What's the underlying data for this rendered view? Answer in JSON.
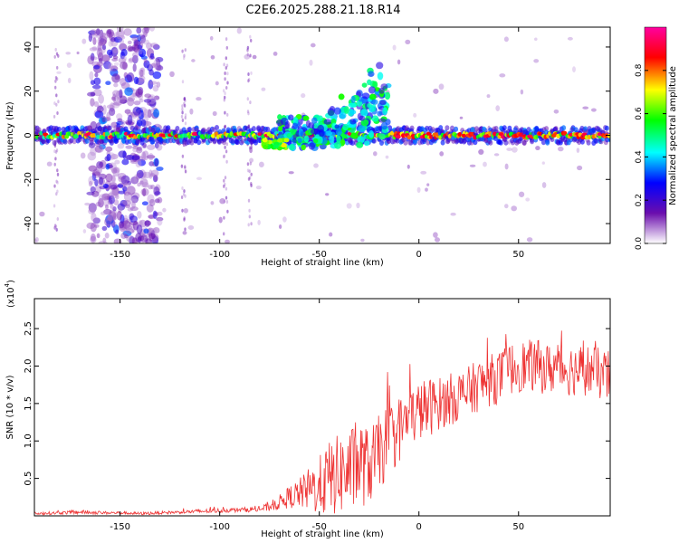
{
  "figure": {
    "title": "C2E6.2025.288.21.18.R14"
  },
  "chart_data": [
    {
      "type": "heatmap",
      "title": "C2E6.2025.288.21.18.R14",
      "xlabel": "Height of straight line (km)",
      "ylabel": "Frequency (Hz)",
      "xlim": [
        -193,
        96
      ],
      "ylim": [
        -49,
        49
      ],
      "xticks": [
        -150,
        -100,
        -50,
        0,
        50
      ],
      "yticks": [
        -40,
        -20,
        0,
        20,
        40
      ],
      "colorbar": {
        "label": "Normalized spectral amplitude",
        "range": [
          0,
          1
        ],
        "ticks": [
          0.0,
          0.2,
          0.4,
          0.6,
          0.8
        ],
        "tick_labels": [
          "0.0",
          "0.2",
          "0.4",
          "0.6",
          "0.8"
        ],
        "colors": [
          "#ffffff",
          "#6a0dad",
          "#0000ff",
          "#00ffff",
          "#00ff00",
          "#ffff00",
          "#ff0000",
          "#ff00a0"
        ]
      },
      "features": [
        {
          "name": "dominant band",
          "x_range": [
            -193,
            96
          ],
          "frequency_center": 0,
          "frequency_halfwidth": 3
        },
        {
          "name": "scattered dispersion",
          "x_range": [
            -165,
            -130
          ],
          "frequency_range": [
            -49,
            49
          ]
        },
        {
          "name": "rising streak",
          "x_range": [
            -50,
            -20
          ],
          "frequency_range": [
            0,
            35
          ]
        }
      ]
    },
    {
      "type": "line",
      "xlabel": "Height of straight line (km)",
      "ylabel": "SNR (10 * v/v)",
      "y_scale_label": "(x10",
      "y_scale_exponent": "4",
      "xlim": [
        -193,
        96
      ],
      "ylim": [
        0,
        2.9
      ],
      "xticks": [
        -150,
        -100,
        -50,
        0,
        50
      ],
      "yticks": [
        0.5,
        1.0,
        1.5,
        2.0,
        2.5
      ],
      "ytick_labels": [
        "0.5",
        "1.0",
        "1.5",
        "2.0",
        "2.5"
      ],
      "color": "#ee3333",
      "series": [
        {
          "name": "SNR",
          "x": [
            -193,
            -180,
            -170,
            -160,
            -150,
            -140,
            -130,
            -120,
            -110,
            -100,
            -90,
            -80,
            -75,
            -70,
            -65,
            -60,
            -55,
            -50,
            -45,
            -40,
            -35,
            -30,
            -25,
            -20,
            -15,
            -10,
            -5,
            0,
            5,
            10,
            15,
            20,
            25,
            30,
            35,
            40,
            45,
            50,
            55,
            60,
            65,
            70,
            75,
            80,
            85,
            90,
            96
          ],
          "y": [
            0.03,
            0.04,
            0.05,
            0.04,
            0.04,
            0.03,
            0.04,
            0.05,
            0.06,
            0.07,
            0.08,
            0.09,
            0.12,
            0.18,
            0.25,
            0.3,
            0.35,
            0.4,
            0.5,
            0.55,
            0.6,
            0.7,
            0.65,
            0.85,
            1.0,
            1.15,
            1.3,
            1.4,
            1.45,
            1.5,
            1.55,
            1.6,
            1.65,
            1.75,
            1.8,
            1.85,
            1.95,
            2.0,
            2.0,
            2.0,
            1.95,
            2.0,
            1.95,
            1.95,
            1.95,
            1.9,
            1.85
          ],
          "noise_amplitude": [
            0.02,
            0.02,
            0.03,
            0.02,
            0.02,
            0.02,
            0.02,
            0.02,
            0.03,
            0.03,
            0.03,
            0.04,
            0.06,
            0.1,
            0.15,
            0.2,
            0.3,
            0.4,
            0.5,
            0.55,
            0.55,
            0.6,
            0.5,
            0.5,
            0.5,
            0.45,
            0.4,
            0.4,
            0.4,
            0.35,
            0.35,
            0.35,
            0.35,
            0.35,
            0.35,
            0.35,
            0.35,
            0.35,
            0.35,
            0.35,
            0.35,
            0.35,
            0.35,
            0.35,
            0.35,
            0.35,
            0.35
          ]
        }
      ]
    }
  ]
}
